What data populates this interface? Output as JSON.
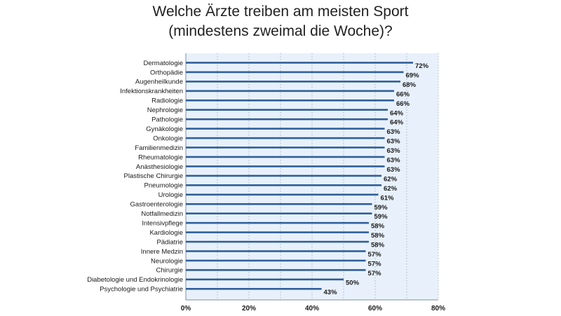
{
  "chart_data": {
    "type": "bar",
    "orientation": "horizontal",
    "title_line1": "Welche Ärzte treiben am meisten Sport",
    "title_line2": "(mindestens zweimal die Woche)?",
    "categories": [
      "Dermatologie",
      "Orthopädie",
      "Augenheilkunde",
      "Infektionskrankheiten",
      "Radiologie",
      "Nephrologie",
      "Pathologie",
      "Gynäkologie",
      "Onkologie",
      "Familienmedizin",
      "Rheumatologie",
      "Anästhesiologie",
      "Plastische Chirurgie",
      "Pneumologie",
      "Urologie",
      "Gastroenterologie",
      "Notfallmedizin",
      "Intensivpflege",
      "Kardiologie",
      "Pädiatrie",
      "Innere Medzin",
      "Neurologie",
      "Chirurgie",
      "Diabetologie und Endokrinologie",
      "Psychologie und Psychiatrie"
    ],
    "values": [
      72,
      69,
      68,
      66,
      66,
      64,
      64,
      63,
      63,
      63,
      63,
      63,
      62,
      62,
      61,
      59,
      59,
      58,
      58,
      58,
      57,
      57,
      57,
      50,
      43
    ],
    "value_labels": [
      "72%",
      "69%",
      "68%",
      "66%",
      "66%",
      "64%",
      "64%",
      "63%",
      "63%",
      "63%",
      "63%",
      "63%",
      "62%",
      "62%",
      "61%",
      "59%",
      "59%",
      "58%",
      "58%",
      "58%",
      "57%",
      "57%",
      "57%",
      "50%",
      "43%"
    ],
    "xlim": [
      0,
      80
    ],
    "xticks": [
      0,
      20,
      40,
      60,
      80
    ],
    "xtick_labels": [
      "0%",
      "20%",
      "40%",
      "60%",
      "80%"
    ],
    "grid": "vertical dotted",
    "colors": {
      "bar": "#2f5f9a",
      "plot_background": "#e8f1fb",
      "grid": "#9aa9b8",
      "axis": "#7f8f9f"
    }
  }
}
